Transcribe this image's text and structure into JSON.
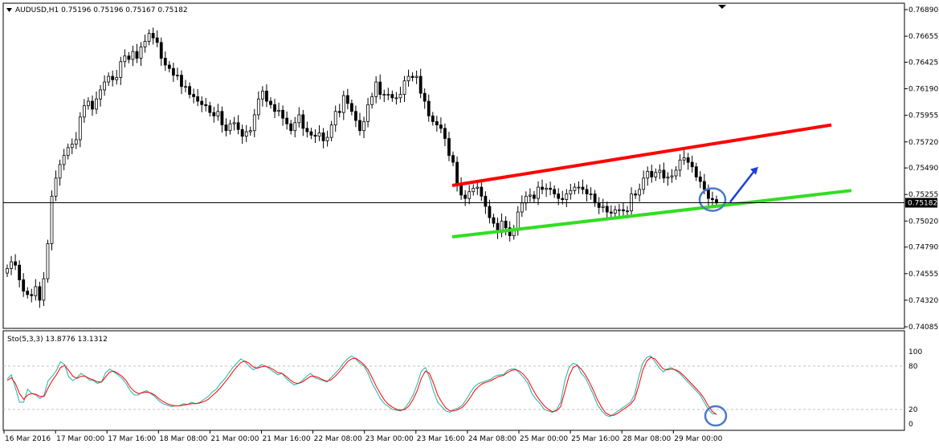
{
  "window": {
    "symbol_info": "AUDUSD,H1  0.75196 0.75196 0.75167 0.75182",
    "current_price_label": "0.75182"
  },
  "price_axis": {
    "ticks": [
      "0.76890",
      "0.76655",
      "0.76425",
      "0.76190",
      "0.75955",
      "0.75720",
      "0.75490",
      "0.75255",
      "0.75020",
      "0.74790",
      "0.74555",
      "0.74320",
      "0.74085"
    ],
    "ylim": [
      0.74085,
      0.7689
    ]
  },
  "indicator": {
    "label": "Sto(5,3,3) 13.8776 13.1312",
    "ticks": [
      "100",
      "80",
      "20",
      "0"
    ],
    "ylim": [
      0,
      100
    ],
    "levels": [
      80,
      20
    ]
  },
  "time_axis": {
    "labels": [
      "16 Mar 2016",
      "17 Mar 00:00",
      "17 Mar 16:00",
      "18 Mar 08:00",
      "21 Mar 00:00",
      "21 Mar 16:00",
      "22 Mar 08:00",
      "23 Mar 00:00",
      "23 Mar 16:00",
      "24 Mar 08:00",
      "25 Mar 00:00",
      "25 Mar 16:00",
      "28 Mar 08:00",
      "29 Mar 00:00"
    ]
  },
  "colors": {
    "bull_candle": "#000000",
    "bear_candle": "#000000",
    "resistance_line": "#ff0000",
    "support_line": "#33dd22",
    "arrow": "#1e3fd8",
    "circle": "#4a78c8",
    "stoch_main": "#20b2aa",
    "stoch_signal": "#ff0000",
    "grid_level": "#c0c0c0"
  },
  "chart_data": [
    {
      "type": "candlestick",
      "title": "AUDUSD,H1",
      "close_price": 0.75182,
      "ylim": [
        0.74085,
        0.7689
      ],
      "annotations": [
        {
          "kind": "trendline",
          "color": "red",
          "from": [
            0.0,
            0.75335
          ],
          "to": [
            1.0,
            0.7587
          ],
          "meaning": "upper channel"
        },
        {
          "kind": "trendline",
          "color": "green",
          "from": [
            0.0,
            0.7488
          ],
          "to": [
            1.0,
            0.7529
          ],
          "meaning": "lower channel"
        },
        {
          "kind": "circle",
          "at_price": 0.7521
        },
        {
          "kind": "arrow",
          "direction": "up"
        }
      ],
      "closes": [
        0.746,
        0.7466,
        0.7463,
        0.745,
        0.744,
        0.7437,
        0.7436,
        0.7444,
        0.7432,
        0.7451,
        0.7482,
        0.7524,
        0.754,
        0.7552,
        0.756,
        0.7567,
        0.757,
        0.7574,
        0.7594,
        0.7604,
        0.7608,
        0.7601,
        0.761,
        0.7618,
        0.7625,
        0.763,
        0.7627,
        0.7629,
        0.7643,
        0.7648,
        0.7645,
        0.7652,
        0.7646,
        0.7656,
        0.7661,
        0.7668,
        0.7664,
        0.766,
        0.7646,
        0.764,
        0.7637,
        0.7631,
        0.7631,
        0.7621,
        0.7621,
        0.7614,
        0.7612,
        0.7608,
        0.7605,
        0.7604,
        0.7598,
        0.7595,
        0.7599,
        0.7587,
        0.7582,
        0.7588,
        0.7589,
        0.7583,
        0.7577,
        0.7581,
        0.7582,
        0.7596,
        0.761,
        0.7617,
        0.7608,
        0.7605,
        0.7599,
        0.76,
        0.7593,
        0.7588,
        0.7582,
        0.7589,
        0.7596,
        0.7584,
        0.7581,
        0.7578,
        0.7577,
        0.758,
        0.7573,
        0.7576,
        0.7587,
        0.7599,
        0.7598,
        0.7613,
        0.7606,
        0.7599,
        0.7591,
        0.7582,
        0.759,
        0.7605,
        0.7612,
        0.7625,
        0.7614,
        0.7614,
        0.7614,
        0.7611,
        0.7611,
        0.7614,
        0.7626,
        0.763,
        0.7629,
        0.763,
        0.7615,
        0.7608,
        0.7595,
        0.759,
        0.7587,
        0.7584,
        0.7575,
        0.756,
        0.7554,
        0.7534,
        0.7525,
        0.7522,
        0.7528,
        0.7531,
        0.7532,
        0.7524,
        0.7515,
        0.7505,
        0.75,
        0.7492,
        0.7502,
        0.7496,
        0.7489,
        0.7495,
        0.751,
        0.7518,
        0.7524,
        0.7525,
        0.7522,
        0.7532,
        0.753,
        0.7531,
        0.753,
        0.7526,
        0.7522,
        0.7521,
        0.7526,
        0.7529,
        0.7532,
        0.7532,
        0.753,
        0.7526,
        0.7526,
        0.7518,
        0.7514,
        0.7515,
        0.751,
        0.7509,
        0.7512,
        0.7512,
        0.7511,
        0.7511,
        0.7526,
        0.7525,
        0.753,
        0.754,
        0.7546,
        0.7541,
        0.7545,
        0.7547,
        0.754,
        0.7541,
        0.7542,
        0.7547,
        0.7556,
        0.7558,
        0.7554,
        0.755,
        0.7541,
        0.7537,
        0.753,
        0.7522,
        0.7521,
        0.7518
      ]
    },
    {
      "type": "line",
      "title": "Sto(5,3,3)",
      "ylim": [
        0,
        100
      ],
      "series": [
        {
          "name": "main",
          "values": [
            62,
            68,
            50,
            30,
            30,
            48,
            42,
            40,
            35,
            40,
            60,
            66,
            74,
            86,
            82,
            65,
            60,
            64,
            70,
            66,
            61,
            60,
            56,
            58,
            71,
            76,
            72,
            68,
            63,
            56,
            46,
            40,
            40,
            44,
            46,
            42,
            38,
            32,
            28,
            26,
            24,
            25,
            25,
            28,
            27,
            30,
            28,
            30,
            34,
            38,
            44,
            48,
            56,
            62,
            70,
            78,
            84,
            90,
            86,
            80,
            75,
            78,
            82,
            80,
            76,
            72,
            68,
            70,
            63,
            58,
            54,
            56,
            60,
            66,
            70,
            64,
            62,
            60,
            58,
            64,
            70,
            76,
            84,
            90,
            94,
            90,
            84,
            80,
            70,
            56,
            46,
            35,
            28,
            24,
            20,
            19,
            18,
            22,
            30,
            40,
            55,
            73,
            78,
            64,
            45,
            30,
            24,
            18,
            16,
            20,
            22,
            26,
            34,
            44,
            52,
            56,
            58,
            60,
            62,
            66,
            68,
            68,
            74,
            76,
            76,
            70,
            64,
            56,
            42,
            34,
            28,
            20,
            18,
            16,
            20,
            30,
            60,
            78,
            84,
            82,
            70,
            64,
            52,
            40,
            26,
            18,
            12,
            10,
            14,
            18,
            22,
            26,
            30,
            40,
            64,
            84,
            92,
            94,
            86,
            78,
            72,
            76,
            78,
            74,
            70,
            64,
            58,
            52,
            46,
            40,
            30,
            20,
            14,
            13.9
          ]
        },
        {
          "name": "signal",
          "values": [
            60,
            64,
            56,
            42,
            34,
            40,
            42,
            41,
            38,
            38,
            50,
            60,
            68,
            78,
            81,
            74,
            66,
            63,
            66,
            66,
            63,
            61,
            58,
            58,
            65,
            72,
            73,
            70,
            66,
            60,
            51,
            45,
            42,
            43,
            44,
            43,
            40,
            35,
            31,
            28,
            26,
            25,
            25,
            26,
            27,
            28,
            28,
            29,
            31,
            34,
            39,
            44,
            50,
            57,
            64,
            72,
            79,
            85,
            87,
            84,
            79,
            77,
            79,
            80,
            78,
            75,
            71,
            70,
            66,
            61,
            57,
            56,
            58,
            62,
            66,
            66,
            64,
            61,
            59,
            61,
            66,
            72,
            79,
            86,
            90,
            91,
            87,
            82,
            75,
            64,
            52,
            42,
            33,
            27,
            23,
            20,
            19,
            20,
            25,
            34,
            46,
            63,
            73,
            70,
            56,
            40,
            30,
            22,
            18,
            18,
            20,
            23,
            29,
            37,
            46,
            52,
            56,
            58,
            60,
            63,
            66,
            67,
            71,
            74,
            75,
            73,
            68,
            61,
            50,
            40,
            32,
            25,
            20,
            17,
            18,
            24,
            45,
            66,
            78,
            81,
            76,
            68,
            58,
            46,
            33,
            23,
            15,
            12,
            12,
            15,
            19,
            23,
            27,
            34,
            52,
            74,
            87,
            92,
            90,
            83,
            76,
            75,
            76,
            75,
            72,
            67,
            61,
            55,
            49,
            43,
            35,
            25,
            17,
            13.1
          ]
        }
      ]
    }
  ]
}
